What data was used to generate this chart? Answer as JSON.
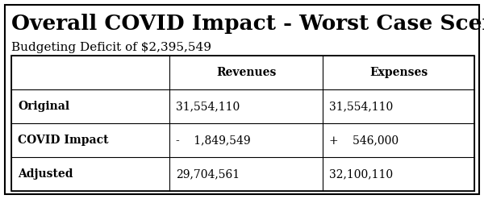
{
  "title": "Overall COVID Impact - Worst Case Scenario",
  "subtitle": "Budgeting Deficit of $2,395,549",
  "table": {
    "col_headers": [
      "",
      "Revenues",
      "Expenses"
    ],
    "rows": [
      [
        "Original",
        "31,554,110",
        "31,554,110"
      ],
      [
        "COVID Impact",
        "-    1,849,549",
        "+    546,000"
      ],
      [
        "Adjusted",
        "29,704,561",
        "32,100,110"
      ]
    ]
  },
  "bg_color": "#ffffff",
  "border_color": "#000000",
  "text_color": "#000000",
  "title_fontsize": 19,
  "subtitle_fontsize": 11,
  "table_fontsize": 10
}
